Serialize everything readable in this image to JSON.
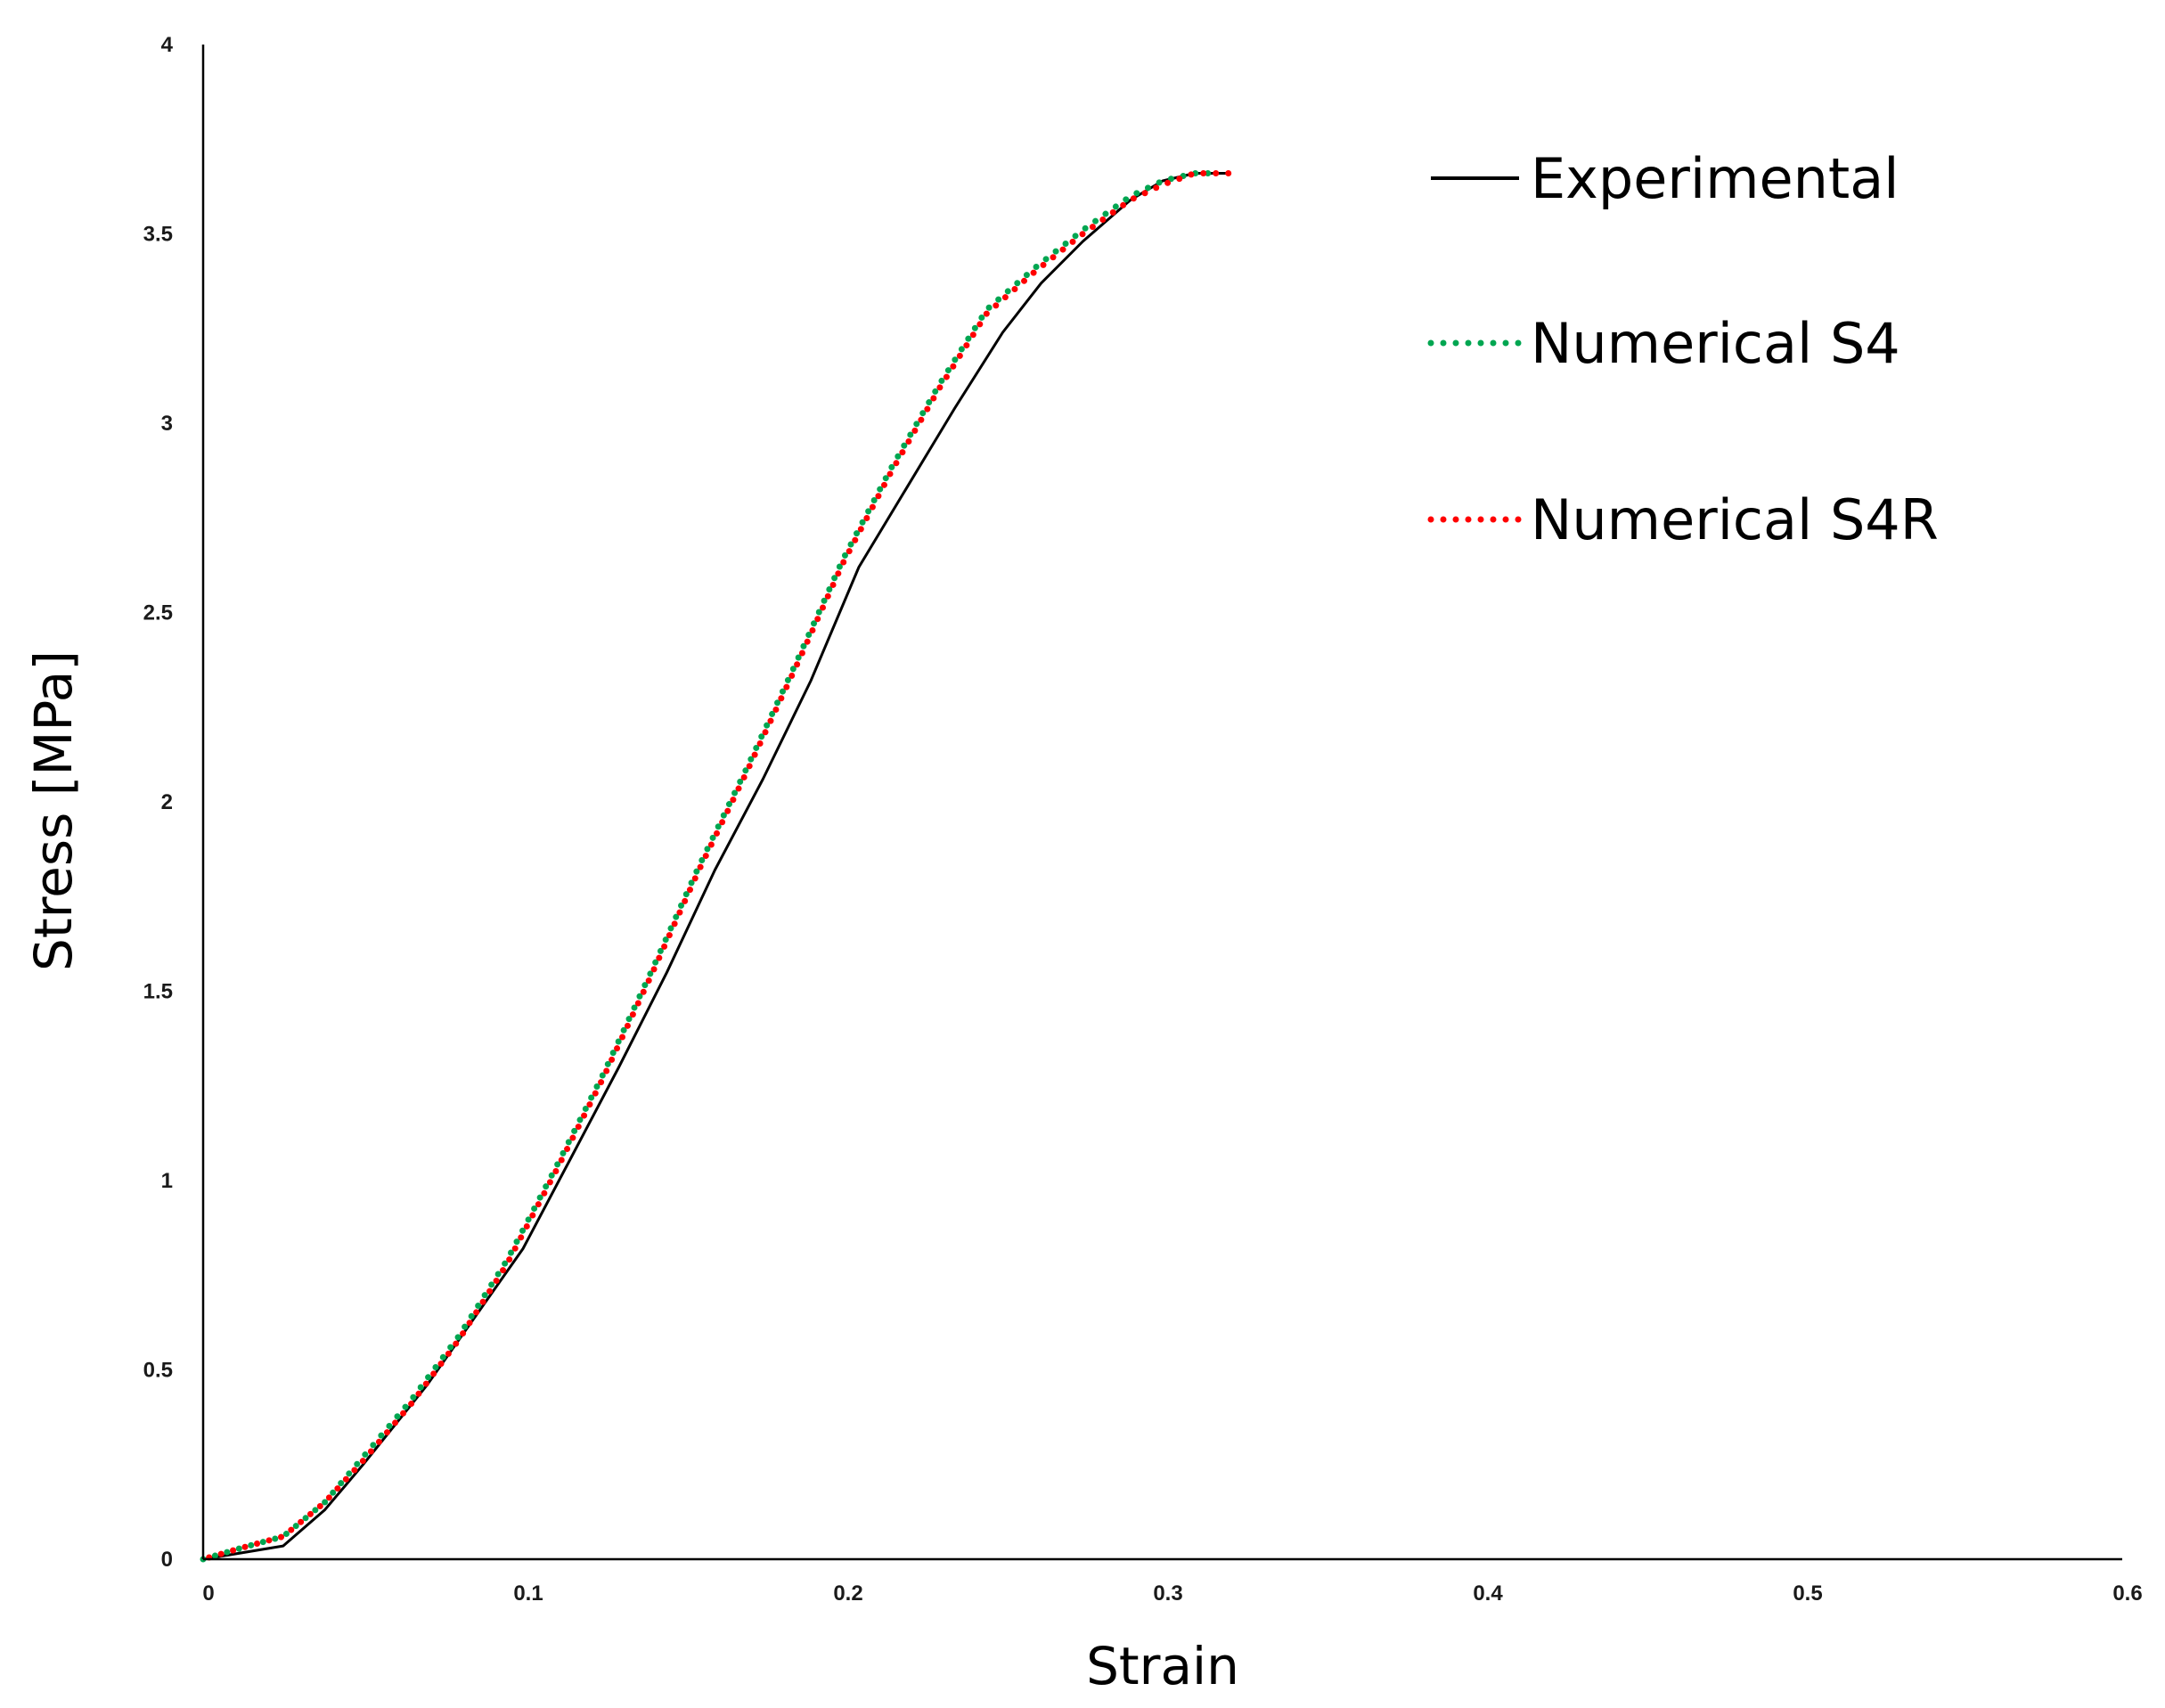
{
  "chart_data": {
    "type": "line",
    "title": "",
    "xlabel": "Strain",
    "ylabel": "Stress [MPa]",
    "xlim": [
      0,
      0.6
    ],
    "ylim": [
      0,
      4
    ],
    "xticks": [
      0,
      0.1,
      0.2,
      0.3,
      0.4,
      0.5,
      0.6
    ],
    "xtick_labels": [
      "0",
      "0.1",
      "0.2",
      "0.3",
      "0.4",
      "0.5",
      "0.6"
    ],
    "yticks": [
      0,
      0.5,
      1,
      1.5,
      2,
      2.5,
      3,
      3.5,
      4
    ],
    "ytick_labels": [
      "0",
      "0.5",
      "1",
      "1.5",
      "2",
      "2.5",
      "3",
      "3.5",
      "4"
    ],
    "grid": false,
    "legend_position": "top-right",
    "series": [
      {
        "name": "Experimental",
        "color": "#000000",
        "style": "solid",
        "x": [
          0,
          0.025,
          0.038,
          0.05,
          0.07,
          0.085,
          0.1,
          0.115,
          0.13,
          0.145,
          0.16,
          0.175,
          0.19,
          0.205,
          0.22,
          0.235,
          0.25,
          0.262,
          0.275,
          0.29,
          0.3,
          0.31,
          0.32
        ],
        "y": [
          0,
          0.035,
          0.13,
          0.25,
          0.46,
          0.64,
          0.82,
          1.06,
          1.3,
          1.55,
          1.82,
          2.06,
          2.32,
          2.62,
          2.83,
          3.04,
          3.24,
          3.37,
          3.48,
          3.59,
          3.64,
          3.66,
          3.66
        ]
      },
      {
        "name": "Numerical S4",
        "color": "#00a651",
        "style": "dotted",
        "x": [
          0,
          0.012,
          0.025,
          0.038,
          0.05,
          0.065,
          0.08,
          0.095,
          0.11,
          0.125,
          0.14,
          0.155,
          0.17,
          0.185,
          0.2,
          0.215,
          0.23,
          0.245,
          0.26,
          0.275,
          0.29,
          0.3,
          0.31,
          0.318
        ],
        "y": [
          0,
          0.03,
          0.06,
          0.15,
          0.27,
          0.42,
          0.59,
          0.79,
          1.03,
          1.28,
          1.55,
          1.83,
          2.09,
          2.36,
          2.64,
          2.88,
          3.1,
          3.3,
          3.41,
          3.51,
          3.6,
          3.64,
          3.66,
          3.66
        ]
      },
      {
        "name": "Numerical S4R",
        "color": "#ff0000",
        "style": "dotted",
        "x": [
          0,
          0.012,
          0.025,
          0.038,
          0.05,
          0.065,
          0.08,
          0.095,
          0.11,
          0.125,
          0.14,
          0.155,
          0.17,
          0.185,
          0.2,
          0.215,
          0.23,
          0.245,
          0.26,
          0.275,
          0.29,
          0.3,
          0.31,
          0.321
        ],
        "y": [
          0,
          0.03,
          0.06,
          0.15,
          0.26,
          0.41,
          0.58,
          0.78,
          1.02,
          1.27,
          1.54,
          1.82,
          2.08,
          2.35,
          2.63,
          2.87,
          3.09,
          3.29,
          3.4,
          3.5,
          3.59,
          3.63,
          3.66,
          3.66
        ]
      }
    ]
  }
}
